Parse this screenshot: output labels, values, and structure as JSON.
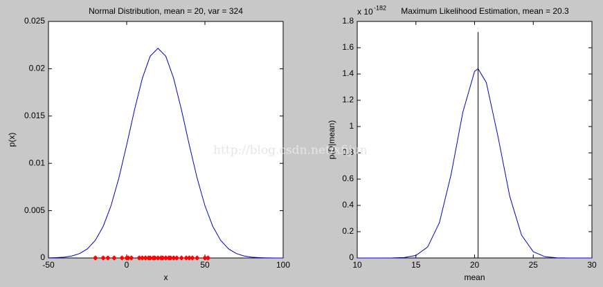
{
  "chart_data": [
    {
      "type": "line",
      "title": "Normal Distribution, mean = 20, var = 324",
      "xlabel": "x",
      "ylabel": "p(x)",
      "xlim": [
        -50,
        100
      ],
      "xticks": [
        -50,
        0,
        50,
        100
      ],
      "ylim": [
        0,
        0.025
      ],
      "yticks": [
        0,
        0.005,
        0.01,
        0.015,
        0.02,
        0.025
      ],
      "series": [
        {
          "type": "line",
          "color": "#0000cc",
          "x": [
            -50,
            -45,
            -40,
            -35,
            -30,
            -25,
            -20,
            -15,
            -10,
            -5,
            0,
            5,
            10,
            15,
            20,
            25,
            30,
            35,
            40,
            45,
            50,
            55,
            60,
            65,
            70,
            75,
            80,
            85,
            90,
            95,
            100
          ],
          "values": [
            1.15e-05,
            3.27e-05,
            8.57e-05,
            0.000208,
            0.000468,
            0.000974,
            0.001876,
            0.003346,
            0.005527,
            0.008448,
            0.011953,
            0.015661,
            0.018991,
            0.021321,
            0.02216,
            0.021321,
            0.018991,
            0.015661,
            0.011953,
            0.008448,
            0.005527,
            0.003346,
            0.001876,
            0.000974,
            0.000468,
            0.000208,
            8.57e-05,
            3.27e-05,
            1.15e-05,
            3.8e-06,
            1.1e-06
          ]
        },
        {
          "type": "scatter",
          "color": "#ff0000",
          "x": [
            -20,
            -15,
            -12,
            -8,
            -3,
            0,
            1,
            3,
            8,
            10,
            12,
            14,
            15,
            17,
            18,
            20,
            22,
            23,
            25,
            27,
            28,
            30,
            32,
            35,
            38,
            40,
            42,
            45,
            50,
            52
          ],
          "values": [
            0,
            0,
            0,
            0,
            0,
            0,
            0,
            0,
            0,
            0,
            0,
            0,
            0,
            0,
            0,
            0,
            0,
            0,
            0,
            0,
            0,
            0,
            0,
            0,
            0,
            0,
            0,
            0,
            0,
            0
          ]
        }
      ]
    },
    {
      "type": "line",
      "title": "Maximum Likelihood Estimation, mean = 20.3",
      "xlabel": "mean",
      "ylabel": "p(D|mean)",
      "y_multiplier": "x 10",
      "y_exponent": "-182",
      "xlim": [
        10,
        30
      ],
      "xticks": [
        10,
        15,
        20,
        25,
        30
      ],
      "ylim": [
        0,
        1.8
      ],
      "yticks": [
        0,
        0.2,
        0.4,
        0.6,
        0.8,
        1,
        1.2,
        1.4,
        1.6,
        1.8
      ],
      "series": [
        {
          "type": "line",
          "color": "#0000cc",
          "x": [
            10,
            11,
            12,
            13,
            14,
            15,
            16,
            17,
            18,
            19,
            20,
            20.3,
            21,
            22,
            23,
            24,
            25,
            26,
            27,
            28,
            29,
            30
          ],
          "values": [
            1e-07,
            2.3e-06,
            3.5e-05,
            0.00039,
            0.00315,
            0.0189,
            0.0831,
            0.268,
            0.636,
            1.109,
            1.42,
            1.44,
            1.335,
            0.922,
            0.468,
            0.174,
            0.0477,
            0.0096,
            0.0014,
            0.00015,
            1.2e-05,
            1e-07
          ]
        },
        {
          "type": "line",
          "color": "#000000",
          "x": [
            20.3,
            20.3
          ],
          "values": [
            0,
            1.72
          ]
        }
      ]
    }
  ],
  "watermark": "http://blog.csdn.net/xfijun"
}
